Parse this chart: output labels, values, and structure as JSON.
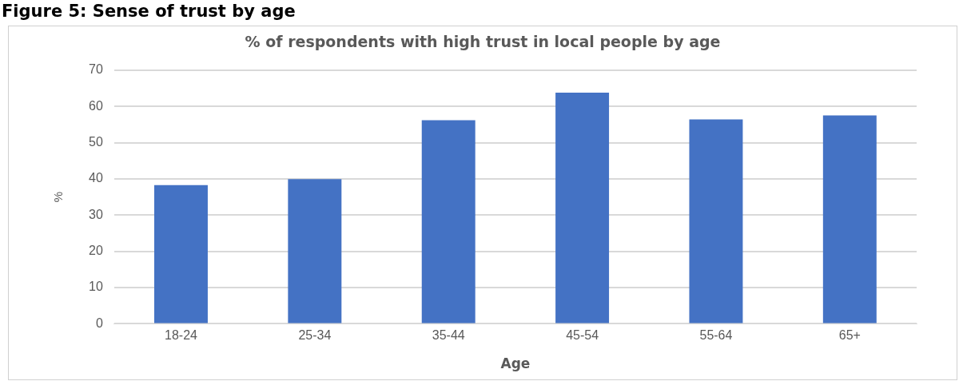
{
  "chart_data": {
    "type": "bar",
    "title": "Figure 5: Sense of trust by age",
    "subtitle": "% of respondents with high trust in local people by age",
    "xlabel": "Age",
    "ylabel": "%",
    "categories": [
      "18-24",
      "25-34",
      "35-44",
      "45-54",
      "55-64",
      "65+"
    ],
    "values": [
      38.3,
      39.9,
      56.2,
      63.8,
      56.4,
      57.5
    ],
    "color": "#4472c4",
    "ylim": [
      0,
      70
    ],
    "yticks": [
      0,
      10,
      20,
      30,
      40,
      50,
      60,
      70
    ],
    "grid": "y",
    "legend": false
  }
}
